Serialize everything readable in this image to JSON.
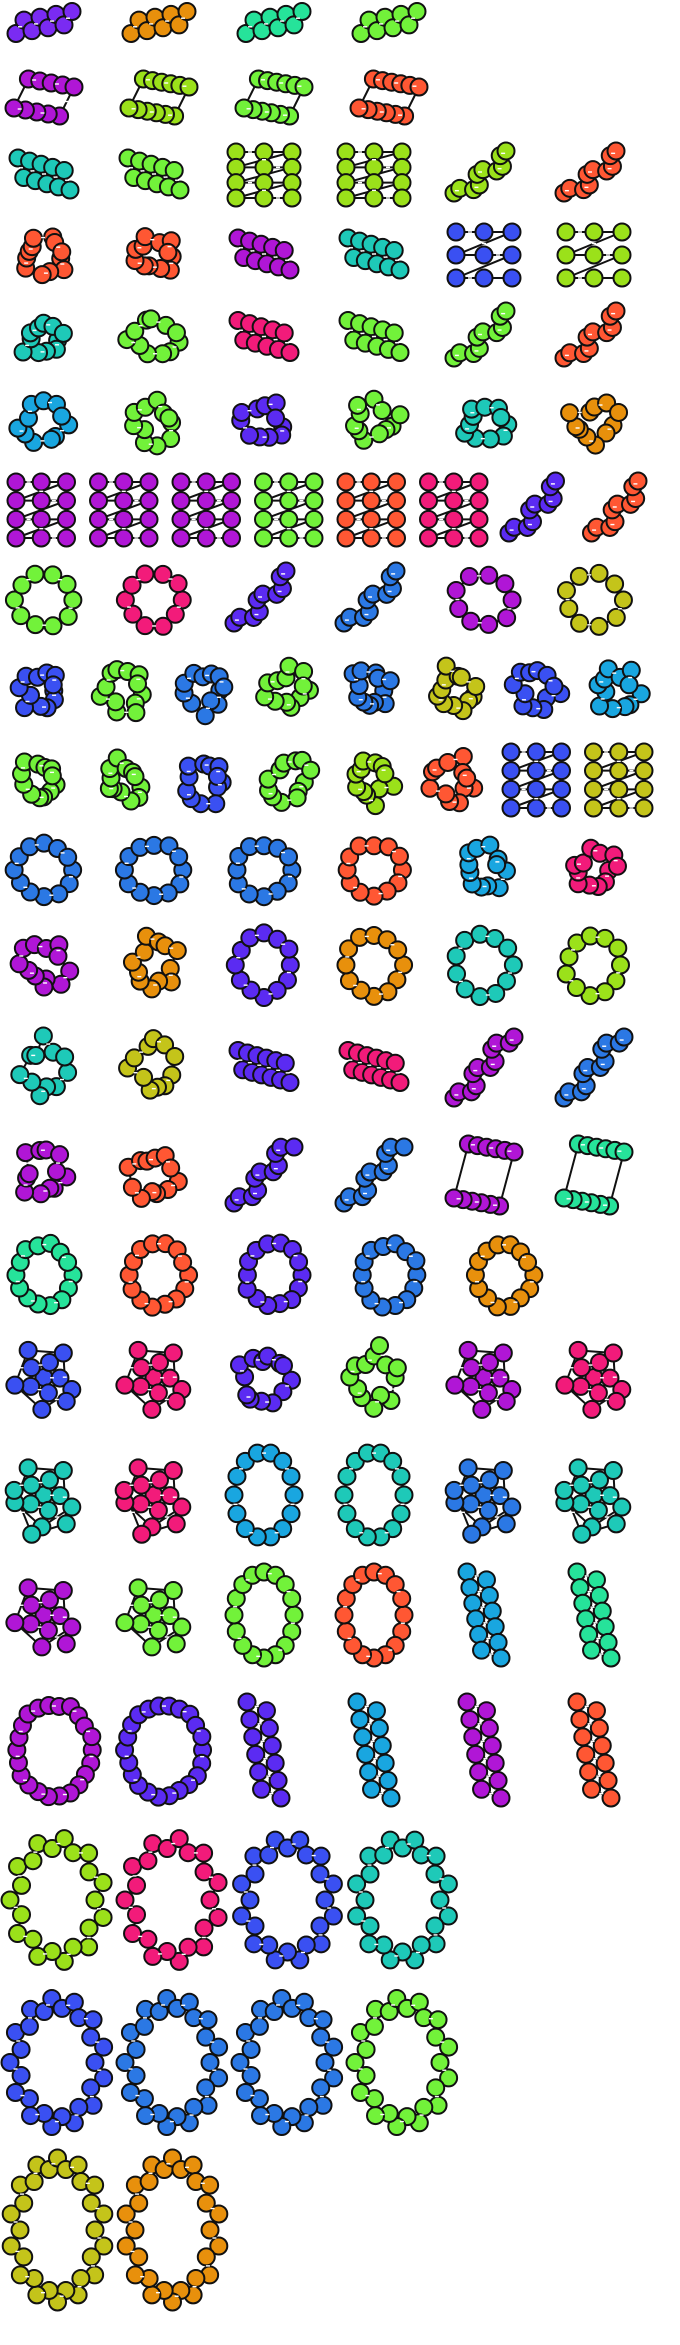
{
  "palette": {
    "purple": "#7a2bf2",
    "orange": "#e8900c",
    "mint": "#26e39a",
    "green": "#72f23a",
    "magenta": "#b016d6",
    "lime": "#9be11a",
    "teal": "#1ec9b8",
    "red": "#ff5733",
    "blue": "#3a50f2",
    "pink": "#f21b7a",
    "cyan": "#19a6e0",
    "olive": "#c4c41a",
    "sky": "#2b78e4",
    "violet": "#5b2bf2"
  },
  "rows": [
    {
      "shapes": [
        {
          "kind": "chain",
          "color": "purple",
          "n": 8
        },
        {
          "kind": "chain",
          "color": "orange",
          "n": 8
        },
        {
          "kind": "chain",
          "color": "mint",
          "n": 8
        },
        {
          "kind": "chain",
          "color": "green",
          "n": 8
        }
      ]
    },
    {
      "shapes": [
        {
          "kind": "para",
          "color": "magenta",
          "n": 10
        },
        {
          "kind": "para",
          "color": "lime",
          "n": 12
        },
        {
          "kind": "para",
          "color": "green",
          "n": 12
        },
        {
          "kind": "para",
          "color": "red",
          "n": 12
        }
      ]
    },
    {
      "shapes": [
        {
          "kind": "ribbon",
          "color": "teal",
          "n": 10
        },
        {
          "kind": "ribbon",
          "color": "green",
          "n": 10
        },
        {
          "kind": "grid",
          "color": "lime",
          "n": 12
        },
        {
          "kind": "grid",
          "color": "lime",
          "n": 12
        },
        {
          "kind": "zz",
          "color": "lime",
          "n": 10
        },
        {
          "kind": "zz",
          "color": "red",
          "n": 10
        }
      ]
    },
    {
      "shapes": [
        {
          "kind": "blob",
          "color": "red",
          "n": 12
        },
        {
          "kind": "blob",
          "color": "red",
          "n": 12
        },
        {
          "kind": "ribbon",
          "color": "magenta",
          "n": 10
        },
        {
          "kind": "ribbon",
          "color": "teal",
          "n": 10
        },
        {
          "kind": "grid",
          "color": "blue",
          "n": 9
        },
        {
          "kind": "grid",
          "color": "lime",
          "n": 9
        }
      ]
    },
    {
      "shapes": [
        {
          "kind": "blob",
          "color": "teal",
          "n": 11
        },
        {
          "kind": "blob",
          "color": "green",
          "n": 11
        },
        {
          "kind": "ribbon",
          "color": "pink",
          "n": 10
        },
        {
          "kind": "ribbon",
          "color": "green",
          "n": 10
        },
        {
          "kind": "zz",
          "color": "green",
          "n": 10
        },
        {
          "kind": "zz",
          "color": "red",
          "n": 10
        }
      ]
    },
    {
      "shapes": [
        {
          "kind": "blob",
          "color": "cyan",
          "n": 11
        },
        {
          "kind": "blob",
          "color": "green",
          "n": 11
        },
        {
          "kind": "blob",
          "color": "violet",
          "n": 11
        },
        {
          "kind": "blob",
          "color": "green",
          "n": 11
        },
        {
          "kind": "blob",
          "color": "teal",
          "n": 11
        },
        {
          "kind": "blob",
          "color": "orange",
          "n": 11
        }
      ]
    },
    {
      "shapes": [
        {
          "kind": "grid",
          "color": "magenta",
          "n": 12
        },
        {
          "kind": "grid",
          "color": "magenta",
          "n": 12
        },
        {
          "kind": "grid",
          "color": "magenta",
          "n": 12
        },
        {
          "kind": "grid",
          "color": "green",
          "n": 12
        },
        {
          "kind": "grid",
          "color": "red",
          "n": 12
        },
        {
          "kind": "grid",
          "color": "pink",
          "n": 12
        },
        {
          "kind": "zz",
          "color": "violet",
          "n": 10
        },
        {
          "kind": "zz",
          "color": "red",
          "n": 10
        }
      ]
    },
    {
      "shapes": [
        {
          "kind": "ring",
          "color": "green",
          "n": 10
        },
        {
          "kind": "ring",
          "color": "pink",
          "n": 10
        },
        {
          "kind": "zz",
          "color": "violet",
          "n": 10
        },
        {
          "kind": "zz",
          "color": "sky",
          "n": 10
        },
        {
          "kind": "ring",
          "color": "magenta",
          "n": 9
        },
        {
          "kind": "ring",
          "color": "olive",
          "n": 9
        }
      ]
    },
    {
      "shapes": [
        {
          "kind": "blob",
          "color": "blue",
          "n": 12
        },
        {
          "kind": "blob",
          "color": "green",
          "n": 12
        },
        {
          "kind": "blob",
          "color": "sky",
          "n": 12
        },
        {
          "kind": "blob",
          "color": "green",
          "n": 12
        },
        {
          "kind": "blob",
          "color": "sky",
          "n": 12
        },
        {
          "kind": "blob",
          "color": "olive",
          "n": 12
        },
        {
          "kind": "blob",
          "color": "blue",
          "n": 12
        },
        {
          "kind": "blob",
          "color": "cyan",
          "n": 12
        }
      ]
    },
    {
      "shapes": [
        {
          "kind": "blob",
          "color": "green",
          "n": 12
        },
        {
          "kind": "blob",
          "color": "green",
          "n": 12
        },
        {
          "kind": "blob",
          "color": "blue",
          "n": 12
        },
        {
          "kind": "blob",
          "color": "green",
          "n": 12
        },
        {
          "kind": "blob",
          "color": "lime",
          "n": 12
        },
        {
          "kind": "blob",
          "color": "red",
          "n": 12
        },
        {
          "kind": "grid",
          "color": "blue",
          "n": 12
        },
        {
          "kind": "grid",
          "color": "olive",
          "n": 12
        }
      ]
    },
    {
      "shapes": [
        {
          "kind": "ring",
          "color": "sky",
          "n": 12
        },
        {
          "kind": "ring",
          "color": "sky",
          "n": 12
        },
        {
          "kind": "ring",
          "color": "sky",
          "n": 12
        },
        {
          "kind": "ring",
          "color": "red",
          "n": 12
        },
        {
          "kind": "blob",
          "color": "cyan",
          "n": 12
        },
        {
          "kind": "blob",
          "color": "pink",
          "n": 12
        }
      ]
    },
    {
      "shapes": [
        {
          "kind": "blob",
          "color": "magenta",
          "n": 12
        },
        {
          "kind": "blob",
          "color": "orange",
          "n": 12
        },
        {
          "kind": "ring",
          "color": "violet",
          "n": 12
        },
        {
          "kind": "ring",
          "color": "orange",
          "n": 12
        },
        {
          "kind": "ring",
          "color": "teal",
          "n": 11
        },
        {
          "kind": "ring",
          "color": "lime",
          "n": 11
        }
      ]
    },
    {
      "shapes": [
        {
          "kind": "blob",
          "color": "teal",
          "n": 11
        },
        {
          "kind": "blob",
          "color": "olive",
          "n": 11
        },
        {
          "kind": "ribbon",
          "color": "violet",
          "n": 12
        },
        {
          "kind": "ribbon",
          "color": "pink",
          "n": 12
        },
        {
          "kind": "zz",
          "color": "magenta",
          "n": 12
        },
        {
          "kind": "zz",
          "color": "sky",
          "n": 12
        }
      ]
    },
    {
      "shapes": [
        {
          "kind": "blob",
          "color": "magenta",
          "n": 12
        },
        {
          "kind": "blob",
          "color": "red",
          "n": 12
        },
        {
          "kind": "zz",
          "color": "violet",
          "n": 11
        },
        {
          "kind": "zz",
          "color": "sky",
          "n": 11
        },
        {
          "kind": "para",
          "color": "magenta",
          "n": 12
        },
        {
          "kind": "para",
          "color": "mint",
          "n": 12
        }
      ]
    },
    {
      "shapes": [
        {
          "kind": "ring",
          "color": "mint",
          "n": 14
        },
        {
          "kind": "ring",
          "color": "red",
          "n": 14
        },
        {
          "kind": "ring",
          "color": "violet",
          "n": 14
        },
        {
          "kind": "ring",
          "color": "sky",
          "n": 14
        },
        {
          "kind": "ring",
          "color": "orange",
          "n": 14
        }
      ]
    },
    {
      "shapes": [
        {
          "kind": "star",
          "color": "blue",
          "n": 12
        },
        {
          "kind": "star",
          "color": "pink",
          "n": 12
        },
        {
          "kind": "blob",
          "color": "violet",
          "n": 13
        },
        {
          "kind": "blob",
          "color": "green",
          "n": 13
        },
        {
          "kind": "star",
          "color": "magenta",
          "n": 12
        },
        {
          "kind": "star",
          "color": "pink",
          "n": 12
        }
      ]
    },
    {
      "shapes": [
        {
          "kind": "star",
          "color": "teal",
          "n": 14
        },
        {
          "kind": "star",
          "color": "pink",
          "n": 14
        },
        {
          "kind": "vring",
          "color": "cyan",
          "n": 14
        },
        {
          "kind": "vring",
          "color": "teal",
          "n": 14
        },
        {
          "kind": "star",
          "color": "sky",
          "n": 14
        },
        {
          "kind": "star",
          "color": "teal",
          "n": 14
        }
      ]
    },
    {
      "shapes": [
        {
          "kind": "star",
          "color": "magenta",
          "n": 12
        },
        {
          "kind": "star",
          "color": "green",
          "n": 12
        },
        {
          "kind": "vring",
          "color": "green",
          "n": 16
        },
        {
          "kind": "vring",
          "color": "red",
          "n": 16
        },
        {
          "kind": "vzz",
          "color": "cyan",
          "n": 12
        },
        {
          "kind": "vzz",
          "color": "mint",
          "n": 12
        }
      ]
    },
    {
      "shapes": [
        {
          "kind": "ring",
          "color": "magenta",
          "n": 22
        },
        {
          "kind": "ring",
          "color": "violet",
          "n": 22
        },
        {
          "kind": "vzz",
          "color": "violet",
          "n": 12
        },
        {
          "kind": "vzz",
          "color": "cyan",
          "n": 12
        },
        {
          "kind": "vzz",
          "color": "magenta",
          "n": 12
        },
        {
          "kind": "vzz",
          "color": "red",
          "n": 12
        }
      ]
    },
    {
      "shapes": [
        {
          "kind": "dring",
          "color": "lime",
          "n": 22
        },
        {
          "kind": "dring",
          "color": "pink",
          "n": 22
        },
        {
          "kind": "dring",
          "color": "blue",
          "n": 24
        },
        {
          "kind": "dring",
          "color": "teal",
          "n": 24
        }
      ]
    },
    {
      "shapes": [
        {
          "kind": "dring",
          "color": "blue",
          "n": 26
        },
        {
          "kind": "dring",
          "color": "sky",
          "n": 26
        },
        {
          "kind": "dring",
          "color": "sky",
          "n": 26
        },
        {
          "kind": "dring",
          "color": "green",
          "n": 26
        }
      ]
    },
    {
      "shapes": [
        {
          "kind": "dring",
          "color": "olive",
          "n": 28
        },
        {
          "kind": "dring",
          "color": "orange",
          "n": 28
        }
      ]
    }
  ]
}
